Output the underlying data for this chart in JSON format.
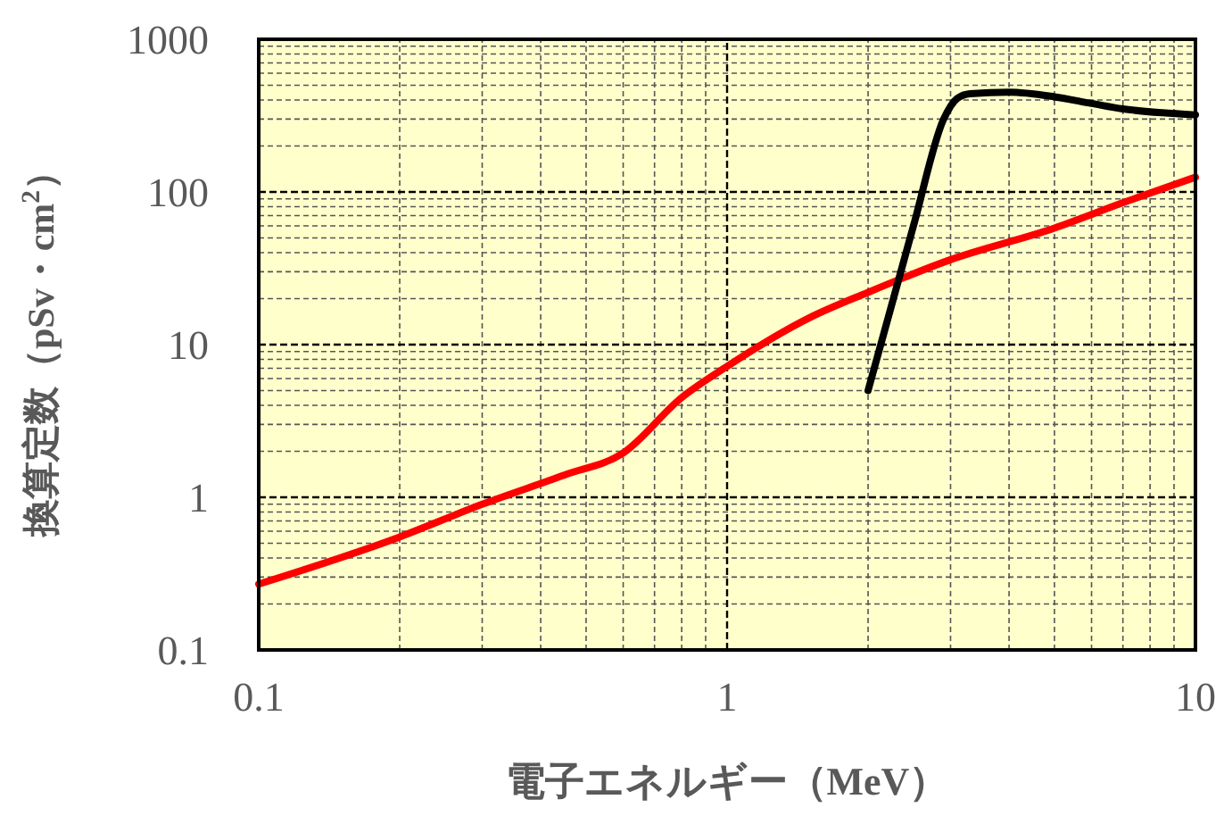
{
  "chart_data": {
    "type": "line",
    "xlabel": "電子エネルギー（MeV）",
    "ylabel": "換算定数（pSv・cm$^{2}$）",
    "log": "xy",
    "grid": true,
    "marker": "none",
    "line_style": "solid",
    "xlim": [
      0.1,
      10
    ],
    "xticks": [
      0.1,
      1,
      10
    ],
    "ylim": [
      0.1,
      1000
    ],
    "yticks": [
      0.1,
      1,
      10,
      100,
      1000
    ],
    "series": [
      {
        "color": "#ff0000",
        "x": [
          0.1,
          0.2,
          0.3,
          0.45,
          0.6,
          0.8,
          1,
          1.5,
          2,
          3,
          5,
          7,
          10
        ],
        "values": [
          0.27,
          0.55,
          0.9,
          1.4,
          1.95,
          4.5,
          7.2,
          15,
          22,
          36,
          58,
          85,
          125
        ]
      },
      {
        "color": "#000000",
        "x": [
          2,
          2.5,
          2.9,
          3.1,
          3.3,
          4,
          5,
          6,
          7,
          8.5,
          10
        ],
        "values": [
          5,
          60,
          300,
          410,
          440,
          450,
          420,
          380,
          350,
          330,
          320
        ]
      }
    ]
  }
}
